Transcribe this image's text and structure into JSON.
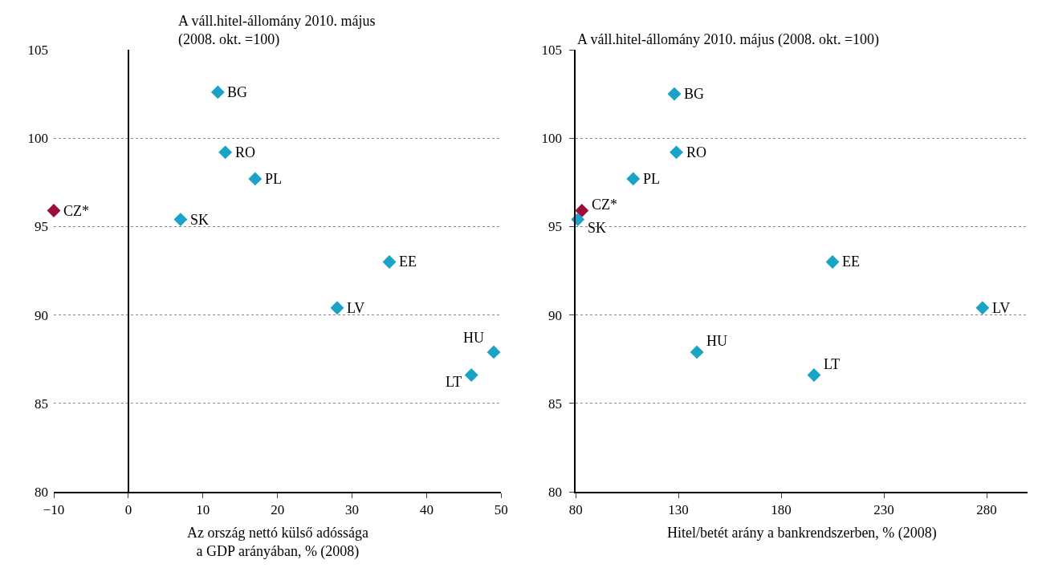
{
  "chart_data": [
    {
      "type": "scatter",
      "ylabel": "A váll.hitel-állomány 2010. május\n(2008. okt. =100)",
      "xlabel": "Az ország nettó külső adóssága\na GDP arányában, % (2008)",
      "x": [
        12,
        13,
        17,
        -10,
        7,
        35,
        28,
        49,
        46
      ],
      "values": [
        102.6,
        99.2,
        97.7,
        95.9,
        95.4,
        93.0,
        90.4,
        87.9,
        86.6
      ],
      "colors": [
        "#1ba3c6",
        "#1ba3c6",
        "#1ba3c6",
        "#9b0d3c",
        "#1ba3c6",
        "#1ba3c6",
        "#1ba3c6",
        "#1ba3c6",
        "#1ba3c6"
      ],
      "annotations": [
        {
          "text": "BG",
          "x": 12,
          "y": 102.6
        },
        {
          "text": "RO",
          "x": 13,
          "y": 99.2
        },
        {
          "text": "PL",
          "x": 17,
          "y": 97.7
        },
        {
          "text": "CZ*",
          "x": -10,
          "y": 95.9
        },
        {
          "text": "SK",
          "x": 7,
          "y": 95.4
        },
        {
          "text": "EE",
          "x": 35,
          "y": 93.0
        },
        {
          "text": "LV",
          "x": 28,
          "y": 90.4
        },
        {
          "text": "HU",
          "x": 49,
          "y": 87.9
        },
        {
          "text": "LT",
          "x": 46,
          "y": 86.6
        }
      ],
      "xlim": [
        -10,
        50
      ],
      "xticks": [
        {
          "value": -10,
          "label": "−10"
        },
        0,
        10,
        20,
        30,
        40,
        50
      ],
      "ylim": [
        80,
        105
      ],
      "yticks": [
        80,
        85,
        90,
        95,
        100,
        105
      ],
      "grid": "y",
      "marker": "diamond"
    },
    {
      "type": "scatter",
      "ylabel": "A váll.hitel-állomány 2010. május (2008. okt. =100)",
      "xlabel": "Hitel/betét arány a bankrendszerben, % (2008)",
      "x": [
        128,
        129,
        108,
        83,
        81,
        205,
        278,
        139,
        196
      ],
      "values": [
        102.5,
        99.2,
        97.7,
        95.9,
        95.4,
        93.0,
        90.4,
        87.9,
        86.6
      ],
      "colors": [
        "#1ba3c6",
        "#1ba3c6",
        "#1ba3c6",
        "#9b0d3c",
        "#1ba3c6",
        "#1ba3c6",
        "#1ba3c6",
        "#1ba3c6",
        "#1ba3c6"
      ],
      "annotations": [
        {
          "text": "BG",
          "x": 128,
          "y": 102.5
        },
        {
          "text": "RO",
          "x": 129,
          "y": 99.2
        },
        {
          "text": "PL",
          "x": 108,
          "y": 97.7
        },
        {
          "text": "CZ*",
          "x": 83,
          "y": 95.9
        },
        {
          "text": "SK",
          "x": 81,
          "y": 95.4
        },
        {
          "text": "EE",
          "x": 205,
          "y": 93.0
        },
        {
          "text": "LV",
          "x": 278,
          "y": 90.4
        },
        {
          "text": "HU",
          "x": 139,
          "y": 87.9
        },
        {
          "text": "LT",
          "x": 196,
          "y": 86.6
        }
      ],
      "xlim": [
        80,
        300
      ],
      "xticks": [
        80,
        130,
        180,
        230,
        280
      ],
      "ylim": [
        80,
        105
      ],
      "yticks": [
        80,
        85,
        90,
        95,
        100,
        105
      ],
      "grid": "y",
      "marker": "diamond"
    }
  ]
}
